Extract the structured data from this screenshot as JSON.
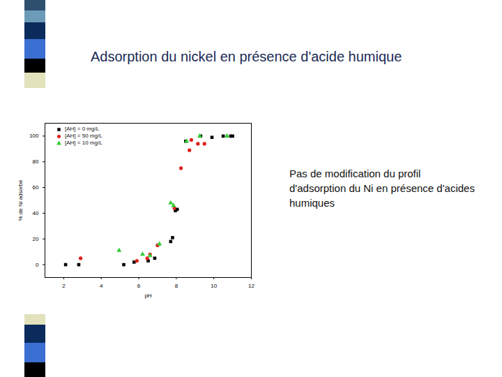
{
  "chart_data": {
    "type": "scatter",
    "title": "Adsorption du nickel en présence d'acide humique",
    "annotations": [
      "Pas de modification du profil d'adsorption du Ni en présence d'acides humiques"
    ],
    "x_label": "pH",
    "y_label": "% de Ni adsorbé",
    "xlim": [
      1,
      12
    ],
    "xticks": [
      2,
      4,
      6,
      8,
      10,
      12
    ],
    "ylim": [
      -10,
      110
    ],
    "yticks": [
      0,
      20,
      40,
      60,
      80,
      100
    ],
    "legend": "top-left",
    "series": [
      {
        "name": "[AH] = 0 mg/L",
        "color": "#000000",
        "marker": "square",
        "x": [
          2.1,
          2.8,
          5.2,
          5.75,
          6.5,
          6.85,
          7.7,
          7.8,
          7.95,
          8.05,
          8.5,
          9.3,
          9.9,
          10.5,
          10.9,
          11.0
        ],
        "values": [
          0,
          0,
          0,
          2,
          3,
          5,
          18,
          21,
          42,
          43,
          96,
          100,
          99,
          100,
          100,
          100
        ]
      },
      {
        "name": "[AH] = 50 mg/L",
        "color": "#e0201b",
        "marker": "circle",
        "x": [
          2.9,
          5.9,
          6.45,
          6.6,
          7.0,
          7.9,
          8.25,
          8.7,
          8.8,
          9.15,
          9.5
        ],
        "values": [
          5,
          3,
          5,
          8,
          15,
          44,
          75,
          89,
          97,
          94,
          94
        ]
      },
      {
        "name": "[AH] = 10 mg/L",
        "color": "#33cc33",
        "marker": "triangle",
        "x": [
          4.95,
          6.2,
          6.6,
          7.1,
          7.7,
          7.85,
          8.55,
          9.25,
          10.7
        ],
        "values": [
          11,
          8,
          7,
          16,
          48,
          46,
          96,
          100,
          100
        ]
      }
    ]
  }
}
